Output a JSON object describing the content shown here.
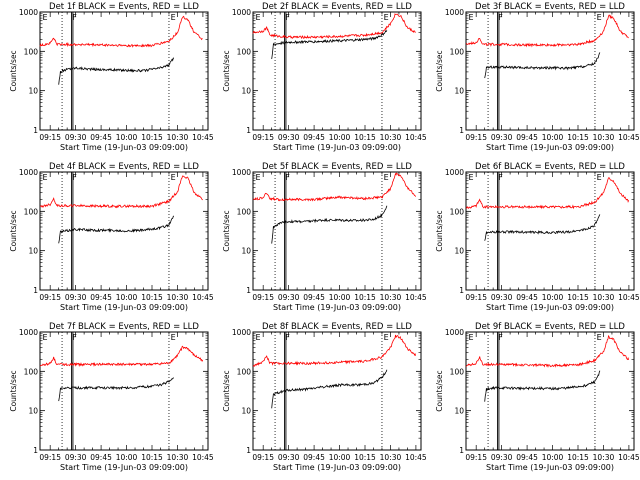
{
  "figure": {
    "common": {
      "ylabel": "Counts/sec",
      "xlabel": "Start Time (19-Jun-03 09:09:00)",
      "x_ticks": [
        "09:15",
        "09:30",
        "09:45",
        "10:00",
        "10:15",
        "10:30",
        "10:45"
      ],
      "y_ticks": [
        "1",
        "10",
        "100",
        "1000"
      ],
      "flare_marks": [
        "E",
        "F",
        "E"
      ],
      "colors": {
        "events": "#000000",
        "lld": "#ff0000",
        "axes": "#000000"
      }
    }
  },
  "chart_data": [
    {
      "type": "line",
      "title": "Det 1f BLACK = Events, RED = LLD",
      "ylabel": "Counts/sec",
      "xlabel": "Start Time (19-Jun-03 09:09:00)",
      "yscale": "log",
      "ylim": [
        1,
        1000
      ],
      "x_ticks": [
        "09:15",
        "09:30",
        "09:45",
        "10:00",
        "10:15",
        "10:30",
        "10:45"
      ],
      "series": [
        {
          "name": "Events",
          "color": "#000000",
          "x": [
            "09:20",
            "09:21",
            "09:25",
            "09:30",
            "09:40",
            "09:50",
            "10:00",
            "10:10",
            "10:20",
            "10:25",
            "10:28"
          ],
          "values": [
            15,
            30,
            35,
            38,
            35,
            34,
            33,
            32,
            38,
            45,
            70
          ]
        },
        {
          "name": "LLD",
          "color": "#ff0000",
          "x": [
            "09:09",
            "09:15",
            "09:17",
            "09:19",
            "09:25",
            "09:30",
            "09:45",
            "10:00",
            "10:15",
            "10:25",
            "10:30",
            "10:33",
            "10:36",
            "10:40",
            "10:45"
          ],
          "values": [
            140,
            160,
            220,
            150,
            150,
            150,
            145,
            140,
            140,
            180,
            300,
            750,
            650,
            300,
            200
          ]
        }
      ]
    },
    {
      "type": "line",
      "title": "Det 2f BLACK = Events, RED = LLD",
      "ylabel": "Counts/sec",
      "xlabel": "Start Time (19-Jun-03 09:09:00)",
      "yscale": "log",
      "ylim": [
        1,
        1000
      ],
      "x_ticks": [
        "09:15",
        "09:30",
        "09:45",
        "10:00",
        "10:15",
        "10:30",
        "10:45"
      ],
      "series": [
        {
          "name": "Events",
          "color": "#000000",
          "x": [
            "09:20",
            "09:21",
            "09:25",
            "09:30",
            "09:40",
            "09:50",
            "10:00",
            "10:10",
            "10:20",
            "10:25",
            "10:28"
          ],
          "values": [
            60,
            150,
            160,
            170,
            175,
            180,
            185,
            195,
            210,
            260,
            340
          ]
        },
        {
          "name": "LLD",
          "color": "#ff0000",
          "x": [
            "09:09",
            "09:15",
            "09:17",
            "09:19",
            "09:25",
            "09:30",
            "09:45",
            "10:00",
            "10:15",
            "10:25",
            "10:30",
            "10:33",
            "10:36",
            "10:40",
            "10:45"
          ],
          "values": [
            300,
            330,
            400,
            260,
            240,
            230,
            230,
            240,
            260,
            300,
            500,
            900,
            800,
            400,
            300
          ]
        }
      ]
    },
    {
      "type": "line",
      "title": "Det 3f BLACK = Events, RED = LLD",
      "ylabel": "Counts/sec",
      "xlabel": "Start Time (19-Jun-03 09:09:00)",
      "yscale": "log",
      "ylim": [
        1,
        1000
      ],
      "x_ticks": [
        "09:15",
        "09:30",
        "09:45",
        "10:00",
        "10:15",
        "10:30",
        "10:45"
      ],
      "series": [
        {
          "name": "Events",
          "color": "#000000",
          "x": [
            "09:20",
            "09:21",
            "09:25",
            "09:30",
            "09:40",
            "09:50",
            "10:00",
            "10:10",
            "10:20",
            "10:25",
            "10:28"
          ],
          "values": [
            20,
            38,
            40,
            40,
            38,
            38,
            38,
            37,
            42,
            50,
            90
          ]
        },
        {
          "name": "LLD",
          "color": "#ff0000",
          "x": [
            "09:09",
            "09:15",
            "09:17",
            "09:19",
            "09:25",
            "09:30",
            "09:45",
            "10:00",
            "10:15",
            "10:25",
            "10:30",
            "10:33",
            "10:36",
            "10:40",
            "10:45"
          ],
          "values": [
            150,
            170,
            220,
            150,
            150,
            150,
            145,
            145,
            150,
            190,
            320,
            800,
            700,
            320,
            220
          ]
        }
      ]
    },
    {
      "type": "line",
      "title": "Det 4f BLACK = Events, RED = LLD",
      "ylabel": "Counts/sec",
      "xlabel": "Start Time (19-Jun-03 09:09:00)",
      "yscale": "log",
      "ylim": [
        1,
        1000
      ],
      "x_ticks": [
        "09:15",
        "09:30",
        "09:45",
        "10:00",
        "10:15",
        "10:30",
        "10:45"
      ],
      "series": [
        {
          "name": "Events",
          "color": "#000000",
          "x": [
            "09:20",
            "09:21",
            "09:25",
            "09:30",
            "09:40",
            "09:50",
            "10:00",
            "10:10",
            "10:20",
            "10:25",
            "10:28"
          ],
          "values": [
            15,
            30,
            32,
            35,
            33,
            33,
            32,
            33,
            38,
            45,
            80
          ]
        },
        {
          "name": "LLD",
          "color": "#ff0000",
          "x": [
            "09:09",
            "09:15",
            "09:17",
            "09:19",
            "09:25",
            "09:30",
            "09:45",
            "10:00",
            "10:15",
            "10:25",
            "10:30",
            "10:33",
            "10:36",
            "10:40",
            "10:45"
          ],
          "values": [
            130,
            150,
            210,
            140,
            140,
            140,
            135,
            135,
            135,
            180,
            320,
            800,
            700,
            300,
            200
          ]
        }
      ]
    },
    {
      "type": "line",
      "title": "Det 5f BLACK = Events, RED = LLD",
      "ylabel": "Counts/sec",
      "xlabel": "Start Time (19-Jun-03 09:09:00)",
      "yscale": "log",
      "ylim": [
        1,
        1000
      ],
      "x_ticks": [
        "09:15",
        "09:30",
        "09:45",
        "10:00",
        "10:15",
        "10:30",
        "10:45"
      ],
      "series": [
        {
          "name": "Events",
          "color": "#000000",
          "x": [
            "09:20",
            "09:21",
            "09:25",
            "09:30",
            "09:40",
            "09:50",
            "10:00",
            "10:10",
            "10:20",
            "10:25",
            "10:28"
          ],
          "values": [
            15,
            40,
            50,
            55,
            55,
            60,
            60,
            58,
            62,
            80,
            140
          ]
        },
        {
          "name": "LLD",
          "color": "#ff0000",
          "x": [
            "09:09",
            "09:15",
            "09:17",
            "09:19",
            "09:25",
            "09:30",
            "09:45",
            "10:00",
            "10:15",
            "10:25",
            "10:30",
            "10:33",
            "10:36",
            "10:40",
            "10:45"
          ],
          "values": [
            200,
            220,
            300,
            210,
            200,
            200,
            200,
            230,
            210,
            230,
            380,
            900,
            800,
            400,
            250
          ]
        }
      ]
    },
    {
      "type": "line",
      "title": "Det 6f BLACK = Events, RED = LLD",
      "ylabel": "Counts/sec",
      "xlabel": "Start Time (19-Jun-03 09:09:00)",
      "yscale": "log",
      "ylim": [
        1,
        1000
      ],
      "x_ticks": [
        "09:15",
        "09:30",
        "09:45",
        "10:00",
        "10:15",
        "10:30",
        "10:45"
      ],
      "series": [
        {
          "name": "Events",
          "color": "#000000",
          "x": [
            "09:20",
            "09:21",
            "09:25",
            "09:30",
            "09:40",
            "09:50",
            "10:00",
            "10:10",
            "10:20",
            "10:25",
            "10:28"
          ],
          "values": [
            18,
            28,
            30,
            30,
            30,
            29,
            29,
            30,
            35,
            45,
            80
          ]
        },
        {
          "name": "LLD",
          "color": "#ff0000",
          "x": [
            "09:09",
            "09:15",
            "09:17",
            "09:19",
            "09:25",
            "09:30",
            "09:45",
            "10:00",
            "10:15",
            "10:25",
            "10:30",
            "10:33",
            "10:36",
            "10:40",
            "10:45"
          ],
          "values": [
            120,
            140,
            200,
            130,
            130,
            130,
            130,
            130,
            130,
            170,
            300,
            700,
            600,
            280,
            180
          ]
        }
      ]
    },
    {
      "type": "line",
      "title": "Det 7f BLACK = Events, RED = LLD",
      "ylabel": "Counts/sec",
      "xlabel": "Start Time (19-Jun-03 09:09:00)",
      "yscale": "log",
      "ylim": [
        1,
        1000
      ],
      "x_ticks": [
        "09:15",
        "09:30",
        "09:45",
        "10:00",
        "10:15",
        "10:30",
        "10:45"
      ],
      "series": [
        {
          "name": "Events",
          "color": "#000000",
          "x": [
            "09:20",
            "09:21",
            "09:25",
            "09:30",
            "09:40",
            "09:50",
            "10:00",
            "10:10",
            "10:20",
            "10:25",
            "10:28"
          ],
          "values": [
            18,
            35,
            38,
            38,
            38,
            38,
            38,
            40,
            45,
            55,
            70
          ]
        },
        {
          "name": "LLD",
          "color": "#ff0000",
          "x": [
            "09:09",
            "09:15",
            "09:17",
            "09:19",
            "09:25",
            "09:30",
            "09:45",
            "10:00",
            "10:15",
            "10:25",
            "10:30",
            "10:33",
            "10:36",
            "10:40",
            "10:45"
          ],
          "values": [
            140,
            160,
            220,
            150,
            150,
            150,
            150,
            150,
            150,
            160,
            250,
            420,
            380,
            250,
            190
          ]
        }
      ]
    },
    {
      "type": "line",
      "title": "Det 8f BLACK = Events, RED = LLD",
      "ylabel": "Counts/sec",
      "xlabel": "Start Time (19-Jun-03 09:09:00)",
      "yscale": "log",
      "ylim": [
        1,
        1000
      ],
      "x_ticks": [
        "09:15",
        "09:30",
        "09:45",
        "10:00",
        "10:15",
        "10:30",
        "10:45"
      ],
      "series": [
        {
          "name": "Events",
          "color": "#000000",
          "x": [
            "09:20",
            "09:21",
            "09:25",
            "09:30",
            "09:40",
            "09:50",
            "10:00",
            "10:10",
            "10:20",
            "10:25",
            "10:28"
          ],
          "values": [
            12,
            25,
            30,
            33,
            35,
            40,
            45,
            45,
            50,
            70,
            110
          ]
        },
        {
          "name": "LLD",
          "color": "#ff0000",
          "x": [
            "09:09",
            "09:15",
            "09:17",
            "09:19",
            "09:25",
            "09:30",
            "09:45",
            "10:00",
            "10:15",
            "10:25",
            "10:30",
            "10:33",
            "10:36",
            "10:40",
            "10:45"
          ],
          "values": [
            140,
            170,
            250,
            160,
            160,
            160,
            160,
            170,
            180,
            230,
            400,
            800,
            700,
            380,
            250
          ]
        }
      ]
    },
    {
      "type": "line",
      "title": "Det 9f BLACK = Events, RED = LLD",
      "ylabel": "Counts/sec",
      "xlabel": "Start Time (19-Jun-03 09:09:00)",
      "yscale": "log",
      "ylim": [
        1,
        1000
      ],
      "x_ticks": [
        "09:15",
        "09:30",
        "09:45",
        "10:00",
        "10:15",
        "10:30",
        "10:45"
      ],
      "series": [
        {
          "name": "Events",
          "color": "#000000",
          "x": [
            "09:20",
            "09:21",
            "09:25",
            "09:30",
            "09:40",
            "09:50",
            "10:00",
            "10:10",
            "10:20",
            "10:25",
            "10:28"
          ],
          "values": [
            18,
            35,
            38,
            38,
            37,
            37,
            36,
            38,
            44,
            55,
            100
          ]
        },
        {
          "name": "LLD",
          "color": "#ff0000",
          "x": [
            "09:09",
            "09:15",
            "09:17",
            "09:19",
            "09:25",
            "09:30",
            "09:45",
            "10:00",
            "10:15",
            "10:25",
            "10:30",
            "10:33",
            "10:36",
            "10:40",
            "10:45"
          ],
          "values": [
            140,
            160,
            230,
            150,
            150,
            150,
            145,
            140,
            145,
            190,
            320,
            750,
            650,
            300,
            200
          ]
        }
      ]
    }
  ]
}
